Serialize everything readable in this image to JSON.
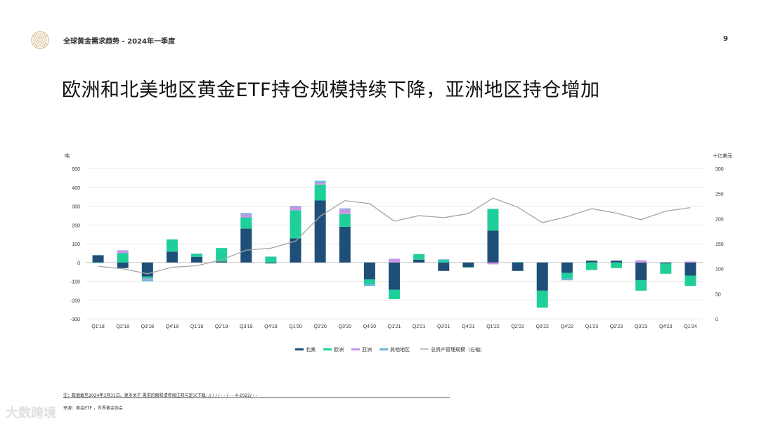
{
  "header": {
    "report_title": "全球黄金需求趋势 - 2024年一季度",
    "page_number": "9"
  },
  "main_title": "欧洲和北美地区黄金ETF持仓规模持续下降，亚洲地区持仓增加",
  "colors": {
    "north_america": "#1f4e79",
    "europe": "#1fcf9a",
    "asia": "#c896e6",
    "other": "#6fb6dd",
    "aum_line": "#a6a6a6",
    "grid": "#e3e3e3"
  },
  "chart_data": {
    "type": "bar",
    "stacked": true,
    "left_unit": "吨",
    "right_unit": "十亿美元",
    "ylim": [
      -300,
      500
    ],
    "yticks": [
      -300,
      -200,
      -100,
      0,
      100,
      200,
      300,
      400,
      500
    ],
    "y2lim": [
      0,
      300
    ],
    "y2ticks": [
      0,
      50,
      100,
      150,
      200,
      250,
      300
    ],
    "categories": [
      "Q1'18",
      "Q2'18",
      "Q3'18",
      "Q4'18",
      "Q1'19",
      "Q2'19",
      "Q3'19",
      "Q4'19",
      "Q1'20",
      "Q2'20",
      "Q3'20",
      "Q4'20",
      "Q1'21",
      "Q2'21",
      "Q3'21",
      "Q4'21",
      "Q1'22",
      "Q2'22",
      "Q3'22",
      "Q4'22",
      "Q1'23",
      "Q2'23",
      "Q3'23",
      "Q4'23",
      "Q1'24"
    ],
    "series": [
      {
        "name": "北美",
        "values": [
          38,
          -30,
          -75,
          58,
          30,
          5,
          180,
          -5,
          128,
          330,
          190,
          -90,
          -145,
          15,
          -45,
          -25,
          170,
          -45,
          -150,
          -55,
          10,
          10,
          -95,
          -5,
          -70
        ]
      },
      {
        "name": "欧洲",
        "values": [
          -2,
          50,
          -10,
          65,
          15,
          72,
          60,
          30,
          150,
          85,
          68,
          -25,
          -50,
          30,
          12,
          -2,
          115,
          2,
          -90,
          -30,
          -40,
          -30,
          -55,
          -55,
          -55
        ]
      },
      {
        "name": "亚洲",
        "values": [
          0,
          15,
          -5,
          0,
          0,
          0,
          15,
          0,
          18,
          10,
          25,
          0,
          20,
          0,
          0,
          0,
          -10,
          0,
          0,
          0,
          0,
          0,
          12,
          0,
          5
        ]
      },
      {
        "name": "其他地区",
        "values": [
          2,
          0,
          -10,
          0,
          3,
          0,
          8,
          2,
          5,
          10,
          5,
          -10,
          0,
          0,
          5,
          0,
          0,
          0,
          0,
          -10,
          0,
          0,
          0,
          0,
          0
        ]
      }
    ],
    "line_series": {
      "name": "总资产管理规模（右轴）",
      "values": [
        105,
        100,
        90,
        103,
        106,
        118,
        137,
        141,
        155,
        205,
        236,
        230,
        195,
        206,
        202,
        210,
        241,
        223,
        192,
        204,
        220,
        211,
        198,
        215,
        222
      ]
    }
  },
  "footnote": "注：数据截至2024年3月31日。更多关于 需求的解释请参阅注释与定义下载: // / / / - - / - - 4-2022/ - -",
  "source": "来源：黄金ETF ，世界黄金协会",
  "watermark": "大数跨境"
}
